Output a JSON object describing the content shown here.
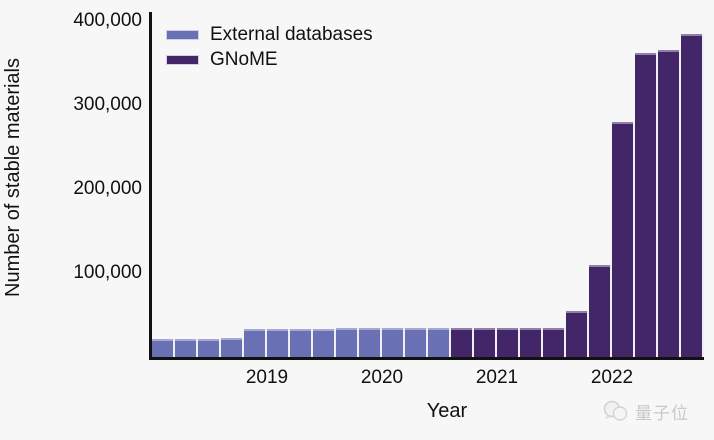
{
  "watermark": {
    "label": "量子位"
  },
  "chart_data": {
    "type": "bar",
    "title": "",
    "xlabel": "Year",
    "ylabel": "Number of stable materials",
    "ylim": [
      0,
      400000
    ],
    "grid": false,
    "legend_position": "top-left",
    "yticks": [
      {
        "label": "400,000",
        "value": 400000
      },
      {
        "label": "300,000",
        "value": 300000
      },
      {
        "label": "200,000",
        "value": 200000
      },
      {
        "label": "100,000",
        "value": 100000
      }
    ],
    "xticks": [
      {
        "label": "2019",
        "boundary": 5
      },
      {
        "label": "2020",
        "boundary": 10
      },
      {
        "label": "2021",
        "boundary": 15
      },
      {
        "label": "2022",
        "boundary": 20
      }
    ],
    "legend": [
      {
        "name": "External databases",
        "color": "#6a70b4"
      },
      {
        "name": "GNoME",
        "color": "#432667"
      }
    ],
    "bars": [
      {
        "value": 21000,
        "series": 0
      },
      {
        "value": 22000,
        "series": 0
      },
      {
        "value": 22000,
        "series": 0
      },
      {
        "value": 23000,
        "series": 0
      },
      {
        "value": 33000,
        "series": 0
      },
      {
        "value": 33000,
        "series": 0
      },
      {
        "value": 33000,
        "series": 0
      },
      {
        "value": 33000,
        "series": 0
      },
      {
        "value": 34000,
        "series": 0
      },
      {
        "value": 34000,
        "series": 0
      },
      {
        "value": 34000,
        "series": 0
      },
      {
        "value": 34000,
        "series": 0
      },
      {
        "value": 34000,
        "series": 0
      },
      {
        "value": 35000,
        "series": 1
      },
      {
        "value": 35000,
        "series": 1
      },
      {
        "value": 35000,
        "series": 1
      },
      {
        "value": 35000,
        "series": 1
      },
      {
        "value": 35000,
        "series": 1
      },
      {
        "value": 55000,
        "series": 1
      },
      {
        "value": 110000,
        "series": 1
      },
      {
        "value": 280000,
        "series": 1
      },
      {
        "value": 362000,
        "series": 1
      },
      {
        "value": 365000,
        "series": 1
      },
      {
        "value": 385000,
        "series": 1
      }
    ]
  }
}
